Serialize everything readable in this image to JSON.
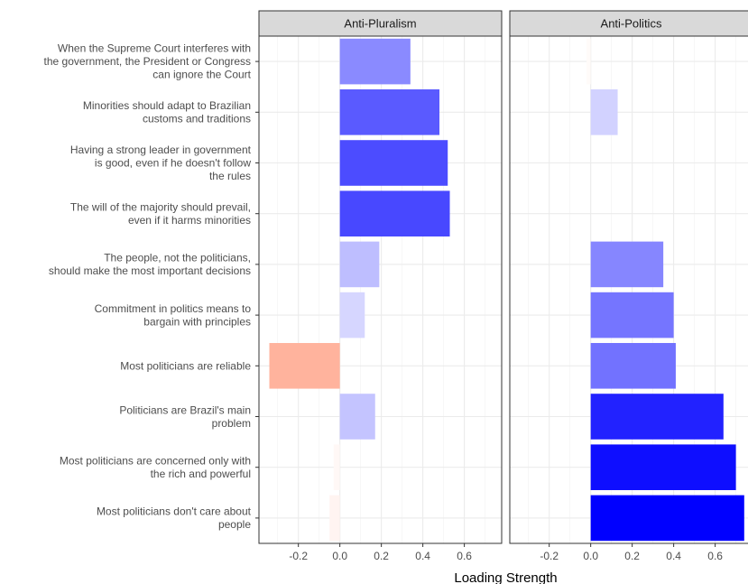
{
  "chart_data": {
    "type": "bar",
    "orientation": "horizontal",
    "xlabel": "Loading Strength",
    "ylabel": "",
    "xlim": [
      -0.39,
      0.78
    ],
    "x_ticks": [
      -0.2,
      0.0,
      0.2,
      0.4,
      0.6
    ],
    "x_tick_labels": [
      "-0.2",
      "0.0",
      "0.2",
      "0.4",
      "0.6"
    ],
    "grid": true,
    "legend": "none",
    "color_scale": {
      "negative": "#ff5a2a",
      "positive": "#0000ff",
      "zero": "#ffffff",
      "max_abs": 0.74
    },
    "categories": [
      [
        "When the Supreme Court interferes with",
        "the government, the President or Congress",
        "can ignore the Court"
      ],
      [
        "Minorities should adapt to Brazilian",
        "customs and traditions"
      ],
      [
        "Having a strong leader in government",
        "is good, even if he doesn't follow",
        "the rules"
      ],
      [
        "The will of the majority should prevail,",
        "even if it harms minorities"
      ],
      [
        "The people, not the politicians,",
        "should make the most important decisions"
      ],
      [
        "Commitment in politics means to",
        "bargain with principles"
      ],
      [
        "Most politicians are reliable"
      ],
      [
        "Politicians are Brazil's main",
        "problem"
      ],
      [
        "Most politicians are concerned only with",
        "the rich and powerful"
      ],
      [
        "Most politicians don't care about",
        "people"
      ]
    ],
    "series": [
      {
        "name": "Anti-Pluralism",
        "values": [
          0.34,
          0.48,
          0.52,
          0.53,
          0.19,
          0.12,
          -0.34,
          0.17,
          -0.03,
          -0.05
        ]
      },
      {
        "name": "Anti-Politics",
        "values": [
          -0.02,
          0.13,
          0.0,
          0.0,
          0.35,
          0.4,
          0.41,
          0.64,
          0.7,
          0.74
        ]
      }
    ]
  }
}
